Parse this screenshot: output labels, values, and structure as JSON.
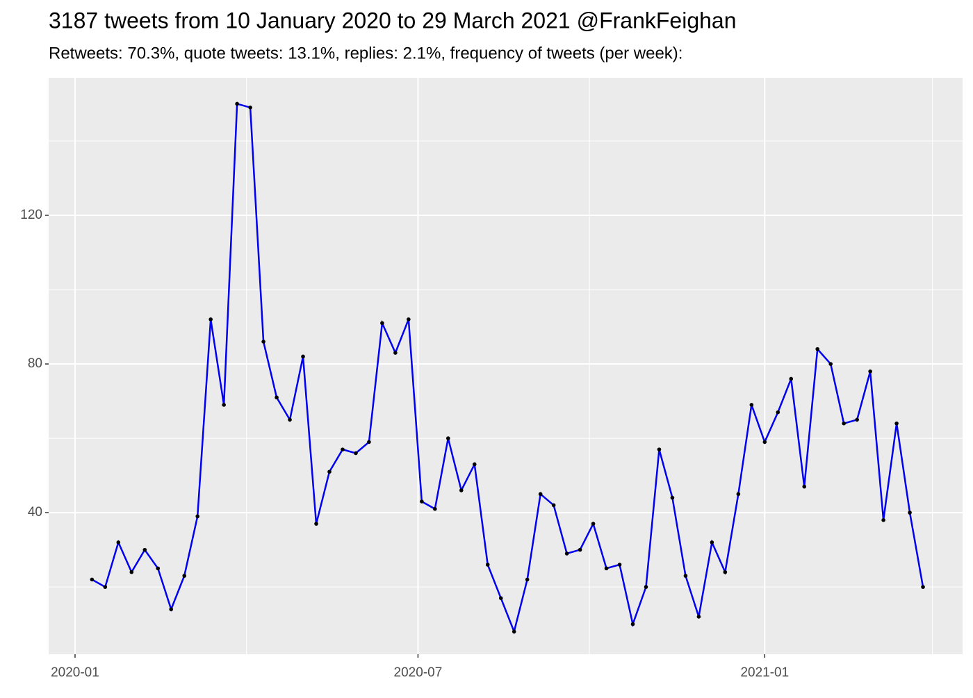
{
  "chart_data": {
    "type": "line",
    "title": "3187 tweets from 10 January 2020 to 29 March 2021 @FrankFeighan",
    "subtitle": "Retweets: 70.3%, quote tweets: 13.1%, replies: 2.1%, frequency of tweets (per week):",
    "x": [
      "2020-01-10",
      "2020-01-17",
      "2020-01-24",
      "2020-01-31",
      "2020-02-07",
      "2020-02-14",
      "2020-02-21",
      "2020-02-28",
      "2020-03-06",
      "2020-03-13",
      "2020-03-20",
      "2020-03-27",
      "2020-04-03",
      "2020-04-10",
      "2020-04-17",
      "2020-04-24",
      "2020-05-01",
      "2020-05-08",
      "2020-05-15",
      "2020-05-22",
      "2020-05-29",
      "2020-06-05",
      "2020-06-12",
      "2020-06-19",
      "2020-06-26",
      "2020-07-03",
      "2020-07-10",
      "2020-07-17",
      "2020-07-24",
      "2020-07-31",
      "2020-08-07",
      "2020-08-14",
      "2020-08-21",
      "2020-08-28",
      "2020-09-04",
      "2020-09-11",
      "2020-09-18",
      "2020-09-25",
      "2020-10-02",
      "2020-10-09",
      "2020-10-16",
      "2020-10-23",
      "2020-10-30",
      "2020-11-06",
      "2020-11-13",
      "2020-11-20",
      "2020-11-27",
      "2020-12-04",
      "2020-12-11",
      "2020-12-18",
      "2020-12-25",
      "2021-01-01",
      "2021-01-08",
      "2021-01-15",
      "2021-01-22",
      "2021-01-29",
      "2021-02-05",
      "2021-02-12",
      "2021-02-19",
      "2021-02-26",
      "2021-03-05",
      "2021-03-12",
      "2021-03-19",
      "2021-03-26"
    ],
    "values": [
      22,
      20,
      32,
      24,
      30,
      25,
      14,
      23,
      39,
      92,
      69,
      150,
      149,
      86,
      71,
      65,
      82,
      37,
      51,
      57,
      56,
      59,
      91,
      83,
      92,
      43,
      41,
      60,
      46,
      53,
      26,
      17,
      8,
      22,
      45,
      42,
      29,
      30,
      37,
      25,
      26,
      10,
      20,
      57,
      44,
      23,
      12,
      32,
      24,
      45,
      69,
      59,
      67,
      76,
      47,
      84,
      80,
      64,
      65,
      78,
      38,
      64,
      40,
      20
    ],
    "color": "#0000ee",
    "point_color": "#000000",
    "xlim": [
      "2019-12-18",
      "2021-04-16"
    ],
    "xticks": [
      {
        "value": "2020-01-01",
        "label": "2020-01"
      },
      {
        "value": "2020-07-01",
        "label": "2020-07"
      },
      {
        "value": "2021-01-01",
        "label": "2021-01"
      }
    ],
    "ylim": [
      1.9,
      157
    ],
    "yticks": [
      40,
      80,
      120
    ],
    "grid": true
  }
}
